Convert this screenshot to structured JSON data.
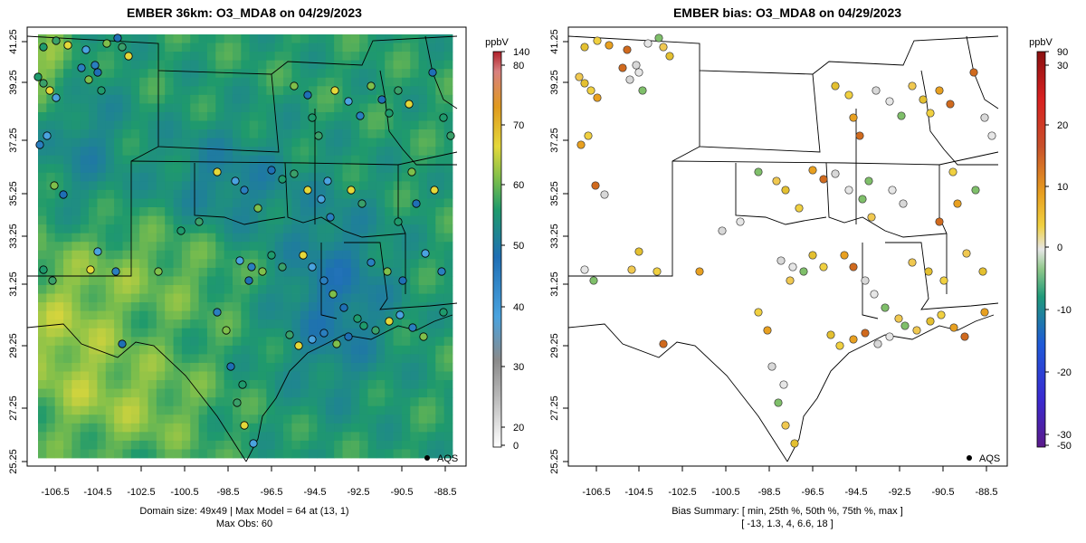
{
  "left_panel": {
    "title": "EMBER 36km: O3_MDA8 on 04/29/2023",
    "colorbar_unit": "ppbV",
    "colorbar_ticks": [
      "0",
      "20",
      "30",
      "40",
      "50",
      "60",
      "70",
      "80",
      "140"
    ],
    "legend_label": "AQS",
    "footer_line1": "Domain size: 49x49 | Max Model = 64 at (13, 1)",
    "footer_line2": "Max Obs: 60"
  },
  "right_panel": {
    "title": "EMBER bias: O3_MDA8 on 04/29/2023",
    "colorbar_unit": "ppbV",
    "colorbar_ticks": [
      "-50",
      "-30",
      "-20",
      "-10",
      "0",
      "10",
      "20",
      "30",
      "90"
    ],
    "legend_label": "AQS",
    "footer_line1": "Bias Summary: [ min, 25th %, 50th %, 75th %, max ]",
    "footer_line2": "[ -13,   1.3,   4,   6.6,   18 ]"
  },
  "axes": {
    "x_ticks": [
      "-106.5",
      "-104.5",
      "-102.5",
      "-100.5",
      "-98.5",
      "-96.5",
      "-94.5",
      "-92.5",
      "-90.5",
      "-88.5"
    ],
    "y_ticks": [
      "25.25",
      "27.25",
      "29.25",
      "31.25",
      "33.25",
      "35.25",
      "37.25",
      "39.25",
      "41.25"
    ]
  },
  "chart_data": [
    {
      "type": "heatmap",
      "title": "EMBER 36km: O3_MDA8 on 04/29/2023",
      "variable": "O3_MDA8",
      "units": "ppbV",
      "grid": "49x49",
      "max_model": 64,
      "max_model_cell": [
        13,
        1
      ],
      "max_obs": 60,
      "xlim": [
        -107.2,
        -88
      ],
      "ylim": [
        25.25,
        41.6
      ],
      "color_scale": [
        {
          "value": 0,
          "color": "#ffffff"
        },
        {
          "value": 20,
          "color": "#9a9a9a"
        },
        {
          "value": 30,
          "color": "#4aa3df"
        },
        {
          "value": 40,
          "color": "#1f6fb5"
        },
        {
          "value": 50,
          "color": "#1f9a6c"
        },
        {
          "value": 55,
          "color": "#7fbf4b"
        },
        {
          "value": 60,
          "color": "#e4d83a"
        },
        {
          "value": 70,
          "color": "#e09a1e"
        },
        {
          "value": 80,
          "color": "#d86a6a"
        },
        {
          "value": 140,
          "color": "#b0202a"
        }
      ]
    },
    {
      "type": "scatter",
      "title": "EMBER bias: O3_MDA8 on 04/29/2023",
      "variable": "bias O3_MDA8",
      "units": "ppbV",
      "xlim": [
        -107.2,
        -88
      ],
      "ylim": [
        25.25,
        41.6
      ],
      "bias_summary": {
        "min": -13,
        "p25": 1.3,
        "median": 4,
        "p75": 6.6,
        "max": 18
      },
      "color_scale": [
        {
          "value": -50,
          "color": "#5a1a8a"
        },
        {
          "value": -30,
          "color": "#3a2ad0"
        },
        {
          "value": -20,
          "color": "#1f5ad8"
        },
        {
          "value": -10,
          "color": "#1f9a7a"
        },
        {
          "value": 0,
          "color": "#e6e6e6"
        },
        {
          "value": 10,
          "color": "#e8a020"
        },
        {
          "value": 20,
          "color": "#c8502a"
        },
        {
          "value": 30,
          "color": "#d82020"
        },
        {
          "value": 90,
          "color": "#8a1010"
        }
      ]
    }
  ]
}
